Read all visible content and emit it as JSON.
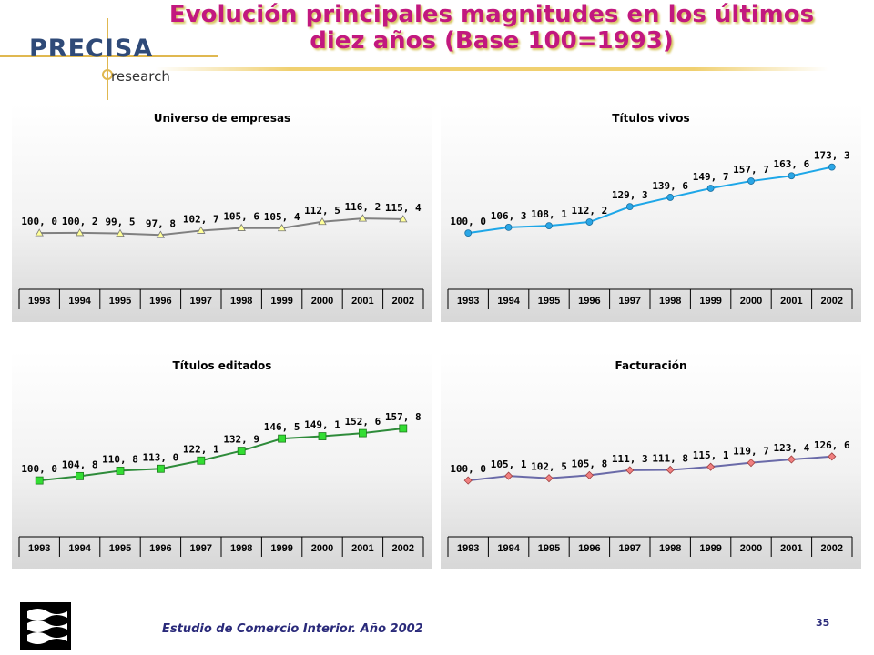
{
  "header": {
    "logo_text": "PRECISA",
    "logo_sub": "research",
    "title_line1": "Evolución principales magnitudes en los últimos",
    "title_line2": "diez años (Base 100=1993)"
  },
  "footer": {
    "text": "Estudio de Comercio Interior. Año 2002",
    "page_number": "35"
  },
  "colors": {
    "title": "#c2187f",
    "title_shadow": "#d7c45d",
    "footer_text": "#2a2a7a"
  },
  "chart_data": [
    {
      "type": "line",
      "title": "Universo de empresas",
      "xlabel": "",
      "ylabel": "",
      "categories": [
        "1993",
        "1994",
        "1995",
        "1996",
        "1997",
        "1998",
        "1999",
        "2000",
        "2001",
        "2002"
      ],
      "values": [
        100.0,
        100.2,
        99.5,
        97.8,
        102.7,
        105.6,
        105.4,
        112.5,
        116.2,
        115.4
      ],
      "labels": [
        "100, 0",
        "100, 2",
        "99, 5",
        "97, 8",
        "102, 7",
        "105, 6",
        "105, 4",
        "112, 5",
        "116, 2",
        "115, 4"
      ],
      "line_color": "#808080",
      "marker": "triangle",
      "marker_color": "#ffff99",
      "grid": false,
      "legend": "none"
    },
    {
      "type": "line",
      "title": "Títulos vivos",
      "xlabel": "",
      "ylabel": "",
      "categories": [
        "1993",
        "1994",
        "1995",
        "1996",
        "1997",
        "1998",
        "1999",
        "2000",
        "2001",
        "2002"
      ],
      "values": [
        100.0,
        106.3,
        108.1,
        112.2,
        129.3,
        139.6,
        149.7,
        157.7,
        163.6,
        173.3
      ],
      "labels": [
        "100, 0",
        "106, 3",
        "108, 1",
        "112, 2",
        "129, 3",
        "139, 6",
        "149, 7",
        "157, 7",
        "163, 6",
        "173, 3"
      ],
      "line_color": "#1ea7e8",
      "marker": "circle",
      "marker_color": "#2aa6e6",
      "grid": false,
      "legend": "none"
    },
    {
      "type": "line",
      "title": "Títulos editados",
      "xlabel": "",
      "ylabel": "",
      "categories": [
        "1993",
        "1994",
        "1995",
        "1996",
        "1997",
        "1998",
        "1999",
        "2000",
        "2001",
        "2002"
      ],
      "values": [
        100.0,
        104.8,
        110.8,
        113.0,
        122.1,
        132.9,
        146.5,
        149.1,
        152.6,
        157.8
      ],
      "labels": [
        "100, 0",
        "104, 8",
        "110, 8",
        "113, 0",
        "122, 1",
        "132, 9",
        "146, 5",
        "149, 1",
        "152, 6",
        "157, 8"
      ],
      "line_color": "#2e8b3a",
      "marker": "square",
      "marker_color": "#33dd33",
      "grid": false,
      "legend": "none"
    },
    {
      "type": "line",
      "title": "Facturación",
      "xlabel": "",
      "ylabel": "",
      "categories": [
        "1993",
        "1994",
        "1995",
        "1996",
        "1997",
        "1998",
        "1999",
        "2000",
        "2001",
        "2002"
      ],
      "values": [
        100.0,
        105.1,
        102.5,
        105.8,
        111.3,
        111.8,
        115.1,
        119.7,
        123.4,
        126.6
      ],
      "labels": [
        "100, 0",
        "105, 1",
        "102, 5",
        "105, 8",
        "111, 3",
        "111, 8",
        "115, 1",
        "119, 7",
        "123, 4",
        "126, 6"
      ],
      "line_color": "#6a6aa8",
      "marker": "diamond",
      "marker_color": "#f08080",
      "grid": false,
      "legend": "none"
    }
  ]
}
